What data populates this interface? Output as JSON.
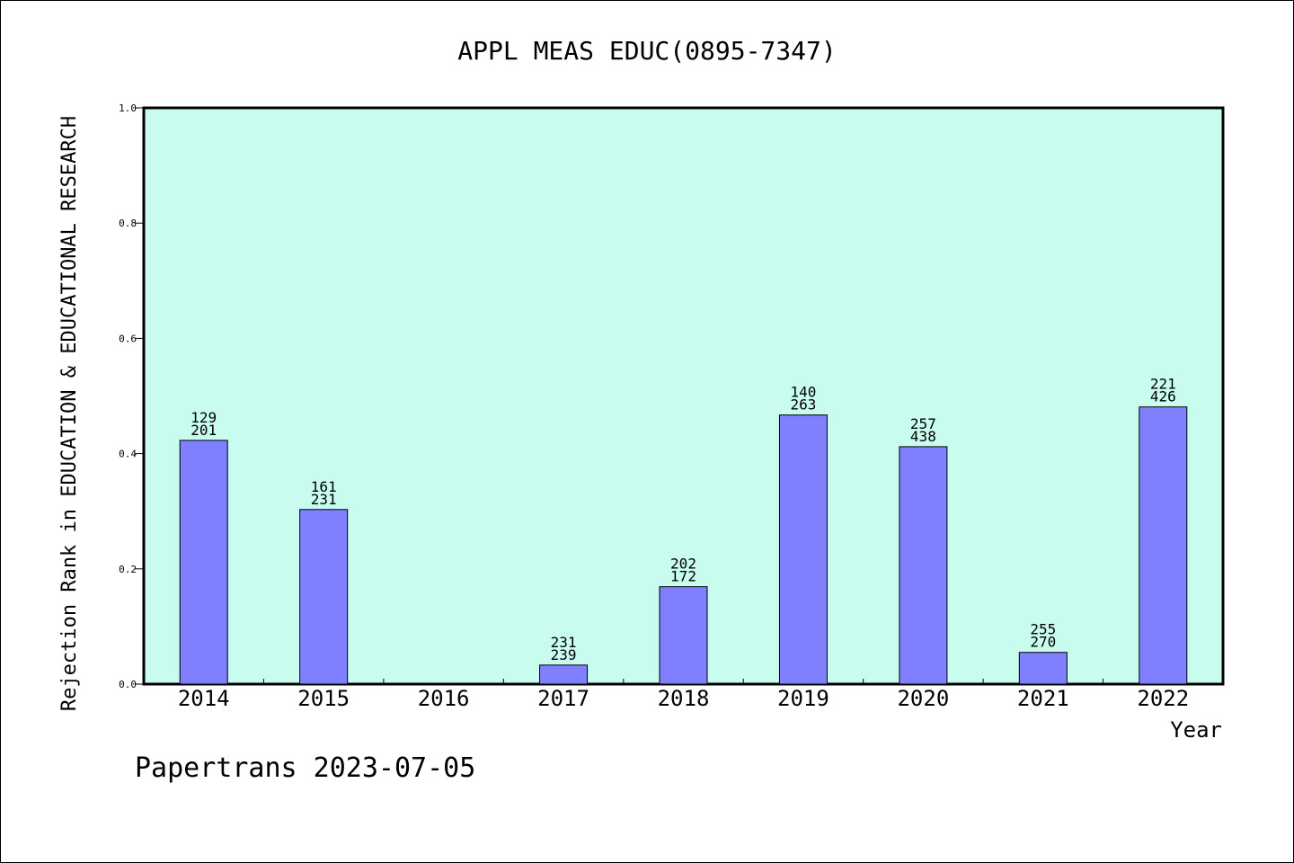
{
  "chart_data": {
    "type": "bar",
    "title": "APPL MEAS EDUC(0895-7347)",
    "xlabel": "Year",
    "ylabel": "Rejection Rank in EDUCATION & EDUCATIONAL RESEARCH",
    "categories": [
      "2014",
      "2015",
      "2016",
      "2017",
      "2018",
      "2019",
      "2020",
      "2021",
      "2022"
    ],
    "values": [
      0.423,
      0.303,
      0.0,
      0.033,
      0.169,
      0.467,
      0.412,
      0.055,
      0.481
    ],
    "label_top": [
      "129",
      "161",
      "",
      "231",
      "202",
      "140",
      "257",
      "255",
      "221"
    ],
    "label_bottom": [
      "201",
      "231",
      "",
      "239",
      "172",
      "263",
      "438",
      "270",
      "426"
    ],
    "ylim": [
      0.0,
      1.0
    ],
    "yticks": [
      "0.0",
      "0.2",
      "0.4",
      "0.6",
      "0.8",
      "1.0"
    ],
    "grid": false,
    "plot_bg": "#c8fcee",
    "bar_color": "#8080ff"
  },
  "footer": "Papertrans 2023-07-05"
}
